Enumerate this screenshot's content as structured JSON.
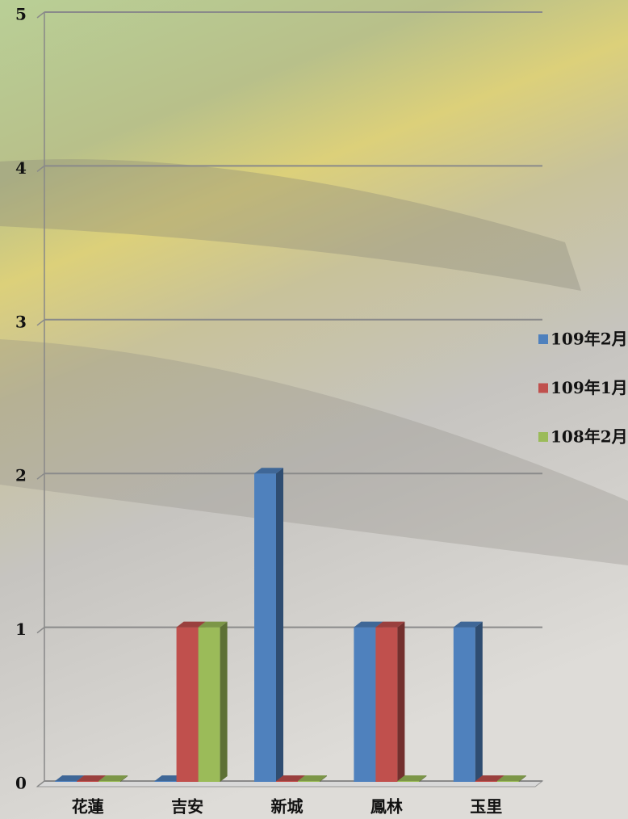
{
  "chart_data": {
    "type": "bar3d",
    "categories": [
      "花蓮",
      "吉安",
      "新城",
      "鳳林",
      "玉里"
    ],
    "series": [
      {
        "name": "109年2月",
        "color": "#4f81bd",
        "values": [
          0,
          0,
          2,
          1,
          1
        ]
      },
      {
        "name": "109年1月",
        "color": "#c0504d",
        "values": [
          0,
          1,
          0,
          1,
          0
        ]
      },
      {
        "name": "108年2月",
        "color": "#9bbb59",
        "values": [
          0,
          1,
          0,
          0,
          0
        ]
      }
    ],
    "ylim": [
      0,
      5
    ],
    "yticks": [
      0,
      1,
      2,
      3,
      4,
      5
    ],
    "grid": true,
    "legend": "right"
  }
}
